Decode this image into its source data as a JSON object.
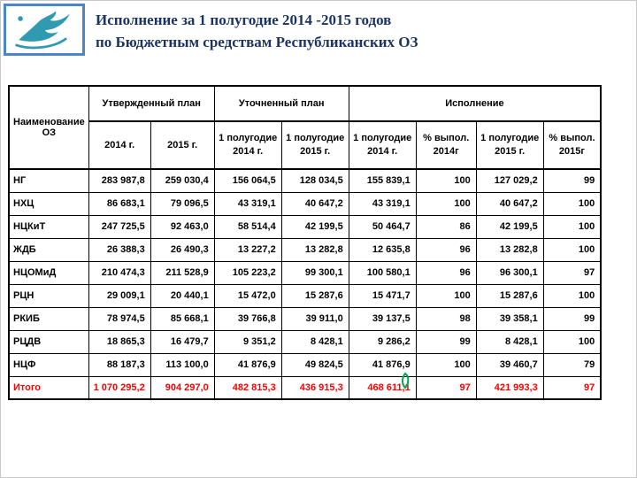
{
  "header": {
    "title_line1": "Исполнение за 1 полугодие 2014 -2015 годов",
    "title_line2": "по Бюджетным средствам Республиканских ОЗ"
  },
  "colors": {
    "title_navy": "#1c3461",
    "highlight_red": "#fe0000",
    "logo_border_blue": "#4a86c8",
    "logo_teal": "#2f9ab0",
    "annotation_green": "#00a550"
  },
  "table": {
    "header": {
      "name_col": "Наименование ОЗ",
      "groups": [
        {
          "label": "Утвержденный план"
        },
        {
          "label": "Уточненный план"
        },
        {
          "label": "Исполнение"
        }
      ],
      "sub": [
        "2014 г.",
        "2015 г.",
        "1 полугодие 2014 г.",
        "1 полугодие 2015 г.",
        "1 полугодие 2014 г.",
        "% выпол. 2014г",
        "1 полугодие 2015 г.",
        "% выпол. 2015г"
      ]
    },
    "rows": [
      {
        "name": "НГ",
        "values": [
          "283 987,8",
          "259 030,4",
          "156 064,5",
          "128 034,5",
          "155 839,1",
          "100",
          "127 029,2",
          "99"
        ]
      },
      {
        "name": "НХЦ",
        "values": [
          "86 683,1",
          "79 096,5",
          "43 319,1",
          "40 647,2",
          "43 319,1",
          "100",
          "40 647,2",
          "100"
        ]
      },
      {
        "name": "НЦКиТ",
        "values": [
          "247 725,5",
          "92 463,0",
          "58 514,4",
          "42 199,5",
          "50 464,7",
          "86",
          "42 199,5",
          "100"
        ]
      },
      {
        "name": "ЖДБ",
        "values": [
          "26 388,3",
          "26 490,3",
          "13 227,2",
          "13 282,8",
          "12 635,8",
          "96",
          "13 282,8",
          "100"
        ]
      },
      {
        "name": "НЦОМиД",
        "values": [
          "210 474,3",
          "211 528,9",
          "105 223,2",
          "99 300,1",
          "100 580,1",
          "96",
          "96 300,1",
          "97"
        ]
      },
      {
        "name": "РЦН",
        "values": [
          "29 009,1",
          "20 440,1",
          "15 472,0",
          "15 287,6",
          "15 471,7",
          "100",
          "15 287,6",
          "100"
        ]
      },
      {
        "name": "РКИБ",
        "values": [
          "78 974,5",
          "85 668,1",
          "39 766,8",
          "39 911,0",
          "39 137,5",
          "98",
          "39 358,1",
          "99"
        ]
      },
      {
        "name": "РЦДВ",
        "values": [
          "18 865,3",
          "16 479,7",
          "9 351,2",
          "8 428,1",
          "9 286,2",
          "99",
          "8 428,1",
          "100"
        ]
      },
      {
        "name": "НЦФ",
        "values": [
          "88 187,3",
          "113 100,0",
          "41 876,9",
          "49 824,5",
          "41 876,9",
          "100",
          "39 460,7",
          "79"
        ]
      }
    ],
    "total": {
      "name": "Итого",
      "values": [
        "1 070 295,2",
        "904 297,0",
        "482 815,3",
        "436 915,3",
        "468 611,1",
        "97",
        "421 993,3",
        "97"
      ]
    }
  }
}
